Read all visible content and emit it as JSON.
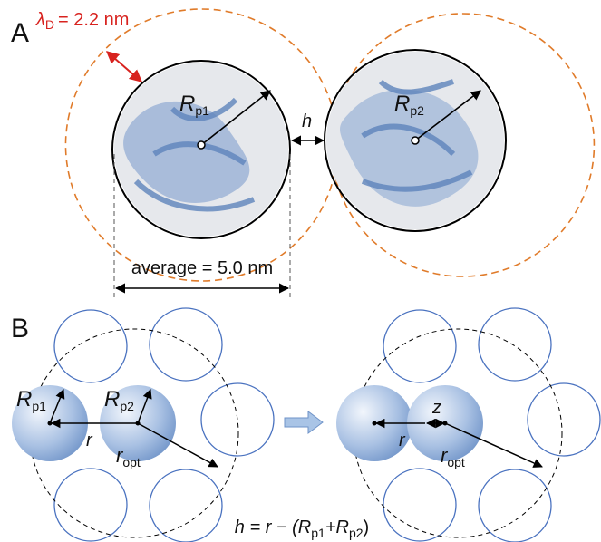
{
  "panel_a": {
    "label": "A",
    "debye": {
      "symbol": "λ",
      "sub": "D",
      "text": "= 2.2 nm"
    },
    "radius_1": {
      "main": "R",
      "sub": "p1"
    },
    "radius_2": {
      "main": "R",
      "sub": "p2"
    },
    "gap": "h",
    "average": "average = 5.0 nm"
  },
  "panel_b": {
    "label": "B",
    "left": {
      "radius_1": {
        "main": "R",
        "sub": "p1"
      },
      "radius_2": {
        "main": "R",
        "sub": "p2"
      },
      "distance": "r",
      "optimal": {
        "main": "r",
        "sub": "opt"
      }
    },
    "right": {
      "distance": "r",
      "offset": "z",
      "optimal": {
        "main": "r",
        "sub": "opt"
      }
    },
    "equation": [
      "h = r − (R",
      "p1",
      "+R",
      "p2",
      ")"
    ]
  }
}
